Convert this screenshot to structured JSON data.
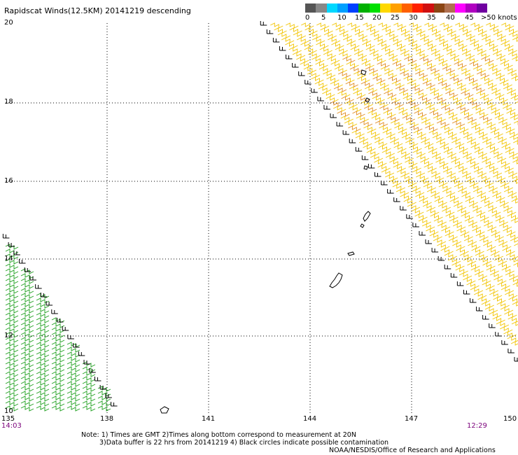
{
  "title": "Rapidscat Winds(12.5KM) 20141219 descending",
  "legend": {
    "colors": [
      "#555555",
      "#888888",
      "#00d8ff",
      "#00a0ff",
      "#0040ff",
      "#00b000",
      "#00e000",
      "#ffd800",
      "#ffa000",
      "#ff6000",
      "#ff2000",
      "#d01010",
      "#8b4513",
      "#b07050",
      "#ff00ff",
      "#b000c0",
      "#7000a0"
    ],
    "labels": [
      "0",
      "5",
      "10",
      "15",
      "20",
      "25",
      "30",
      "35",
      "40",
      "45",
      ">50 knots"
    ]
  },
  "axes": {
    "lat_labels": [
      "20",
      "18",
      "16",
      "14",
      "12",
      "10"
    ],
    "lon_labels": [
      "135",
      "138",
      "141",
      "144",
      "147",
      "150"
    ]
  },
  "times": {
    "left": "14:03",
    "right": "12:29"
  },
  "notes": {
    "line1": "Note: 1) Times are GMT 2)Times along bottom correspond to measurement at 20N",
    "line2": "3)Data buffer is 22 hrs from 20141219 4) Black circles indicate possible contamination"
  },
  "credit": "NOAA/NESDIS/Office of Research and Applications",
  "colors": {
    "right_swath": "#f2c400",
    "right_swath_strong": "#e08a20",
    "left_swath": "#1a9e1a",
    "edge_flags": "#000000",
    "grid": "#000000"
  }
}
